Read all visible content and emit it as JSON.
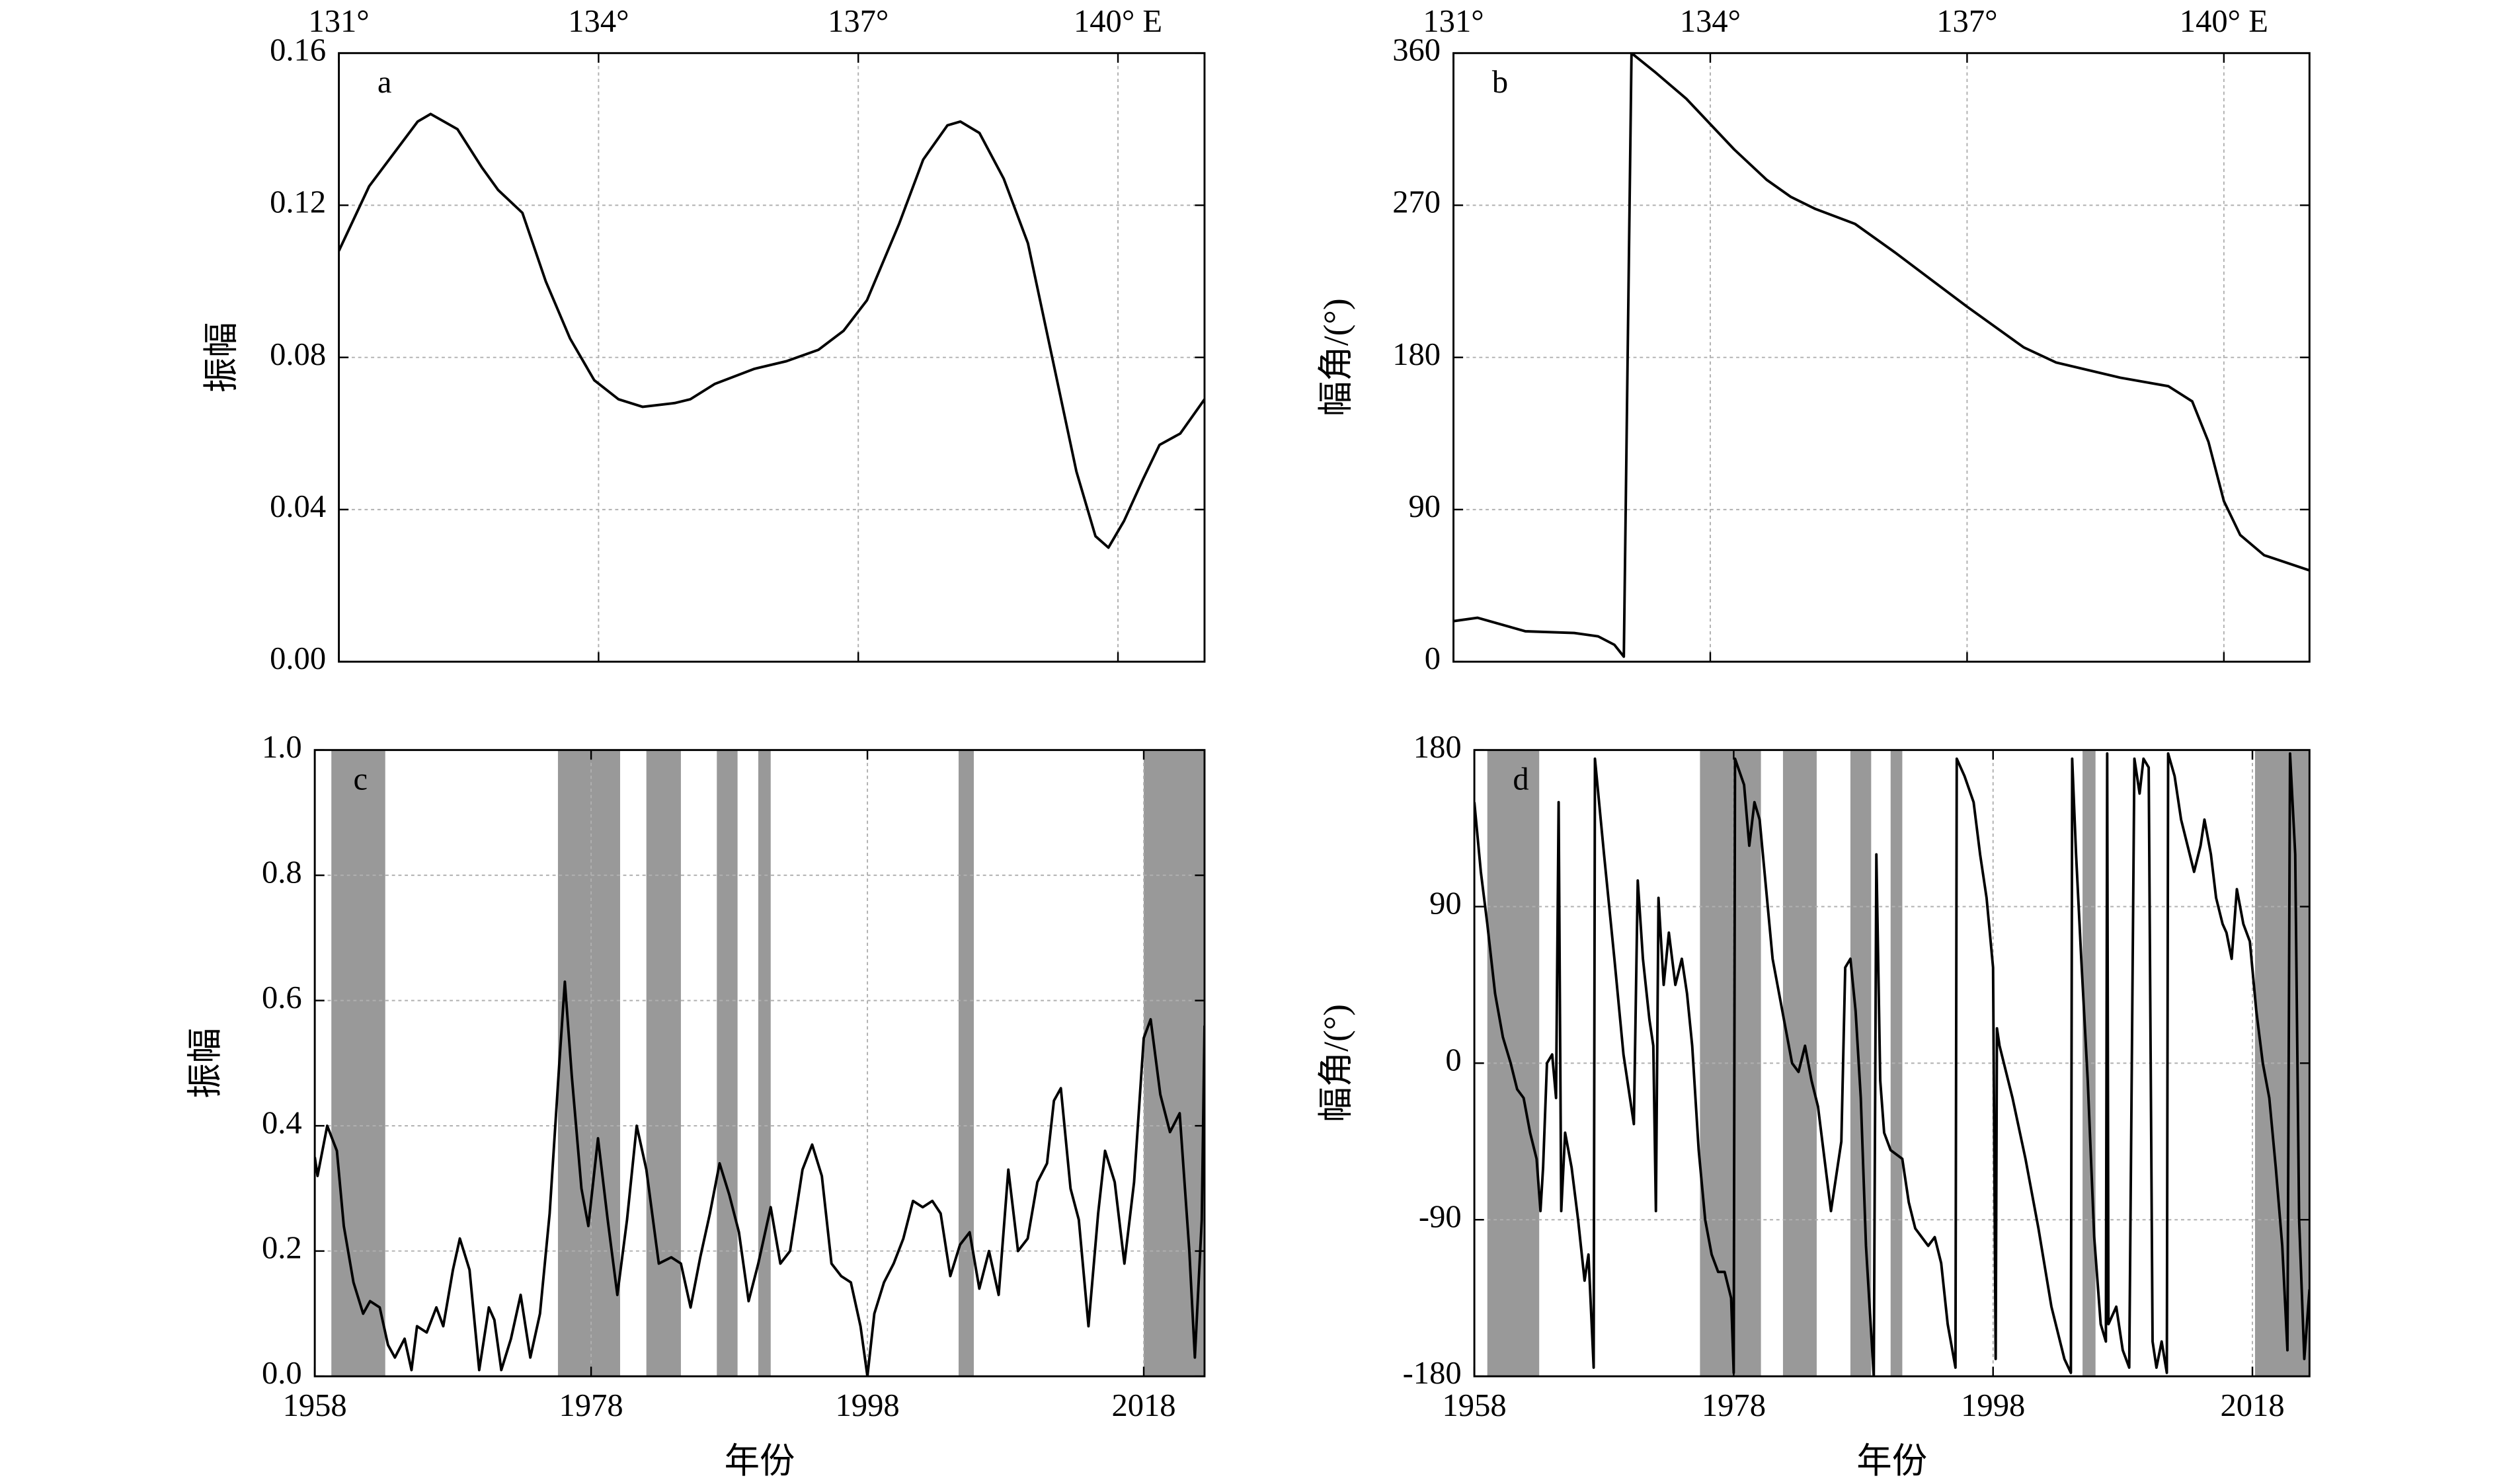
{
  "chart_data": [
    {
      "type": "line",
      "annotation": "a",
      "ylabel": "振幅",
      "xaxis_position": "top",
      "grid": true,
      "color": "#000000",
      "xlim": [
        131,
        141
      ],
      "xticks": [
        {
          "value": 131,
          "label": "131°"
        },
        {
          "value": 134,
          "label": "134°"
        },
        {
          "value": 137,
          "label": "137°"
        },
        {
          "value": 140,
          "label": "140° E"
        }
      ],
      "ylim": [
        0,
        0.16
      ],
      "yticks": [
        {
          "value": 0,
          "label": "0.00"
        },
        0.04,
        0.08,
        0.12,
        0.16
      ],
      "x": [
        131.0,
        131.35,
        131.91,
        132.06,
        132.37,
        132.65,
        132.84,
        133.12,
        133.39,
        133.67,
        133.95,
        134.23,
        134.51,
        134.88,
        135.06,
        135.34,
        135.8,
        136.17,
        136.54,
        136.83,
        137.1,
        137.47,
        137.75,
        138.03,
        138.18,
        138.4,
        138.68,
        138.96,
        139.24,
        139.52,
        139.74,
        139.89,
        140.07,
        140.29,
        140.48,
        140.72,
        141.0
      ],
      "values": [
        0.108,
        0.125,
        0.142,
        0.144,
        0.14,
        0.13,
        0.124,
        0.118,
        0.1,
        0.085,
        0.074,
        0.069,
        0.067,
        0.068,
        0.069,
        0.073,
        0.077,
        0.079,
        0.082,
        0.087,
        0.095,
        0.115,
        0.132,
        0.141,
        0.142,
        0.139,
        0.127,
        0.11,
        0.08,
        0.05,
        0.033,
        0.03,
        0.037,
        0.048,
        0.057,
        0.06,
        0.069
      ]
    },
    {
      "type": "line",
      "annotation": "b",
      "ylabel": "幅角/(°)",
      "xaxis_position": "top",
      "grid": true,
      "color": "#000000",
      "xlim": [
        131,
        141
      ],
      "xticks": [
        {
          "value": 131,
          "label": "131°"
        },
        {
          "value": 134,
          "label": "134°"
        },
        {
          "value": 137,
          "label": "137°"
        },
        {
          "value": 140,
          "label": "140° E"
        }
      ],
      "ylim": [
        0,
        360
      ],
      "yticks": [
        0,
        90,
        180,
        270,
        360
      ],
      "x": [
        131.0,
        131.28,
        131.56,
        131.84,
        132.41,
        132.69,
        132.88,
        132.99,
        133.08,
        133.35,
        133.72,
        134.28,
        134.66,
        134.94,
        135.22,
        135.69,
        136.16,
        137.0,
        137.66,
        138.04,
        138.79,
        139.35,
        139.63,
        139.82,
        140.0,
        140.19,
        140.47,
        141.0
      ],
      "values": [
        24,
        26,
        22,
        18,
        17,
        15,
        10,
        3,
        360,
        349,
        333,
        303,
        285,
        275,
        268,
        259,
        242,
        210,
        186,
        177,
        168,
        163,
        154,
        130,
        95,
        75,
        63,
        54
      ]
    },
    {
      "type": "line",
      "annotation": "c",
      "ylabel": "振幅",
      "xlabel": "年份",
      "xaxis_position": "bottom",
      "grid": true,
      "color": "#000000",
      "shade_color": "#999999",
      "xlim": [
        1958,
        2022.4
      ],
      "xticks": [
        1958,
        1978,
        1998,
        2018
      ],
      "ylim": [
        0,
        1
      ],
      "yticks": [
        {
          "value": 0,
          "label": "0.0"
        },
        0.2,
        0.4,
        0.6,
        0.8,
        {
          "value": 1,
          "label": "1.0"
        }
      ],
      "shaded_spans": [
        [
          1959.2,
          1963.1
        ],
        [
          1975.6,
          1980.1
        ],
        [
          1982.0,
          1984.5
        ],
        [
          1987.1,
          1988.6
        ],
        [
          1990.1,
          1991.0
        ],
        [
          2004.6,
          2005.7
        ],
        [
          2018.0,
          2022.4
        ]
      ],
      "x": [
        1958.0,
        1958.2,
        1958.9,
        1959.6,
        1960.1,
        1960.8,
        1961.5,
        1962.0,
        1962.7,
        1963.3,
        1963.8,
        1964.5,
        1965.0,
        1965.4,
        1966.1,
        1966.8,
        1967.3,
        1968.0,
        1968.5,
        1969.2,
        1969.9,
        1970.6,
        1971.0,
        1971.5,
        1972.2,
        1972.9,
        1973.6,
        1974.3,
        1975.0,
        1975.7,
        1976.1,
        1976.6,
        1977.3,
        1977.8,
        1978.5,
        1979.2,
        1979.9,
        1980.6,
        1981.3,
        1982.0,
        1982.9,
        1983.8,
        1984.5,
        1985.2,
        1985.9,
        1986.6,
        1987.3,
        1988.0,
        1988.7,
        1989.4,
        1990.1,
        1991.0,
        1991.7,
        1992.4,
        1993.3,
        1994.0,
        1994.7,
        1995.4,
        1996.1,
        1996.8,
        1997.5,
        1998.0,
        1998.5,
        1999.2,
        1999.9,
        2000.6,
        2001.3,
        2002.0,
        2002.7,
        2003.3,
        2004.0,
        2004.7,
        2005.4,
        2006.1,
        2006.8,
        2007.5,
        2008.2,
        2008.9,
        2009.6,
        2010.3,
        2011.0,
        2011.5,
        2012.0,
        2012.7,
        2013.3,
        2014.0,
        2014.7,
        2015.2,
        2015.9,
        2016.6,
        2017.3,
        2018.0,
        2018.5,
        2019.2,
        2019.9,
        2020.6,
        2021.3,
        2021.7,
        2022.2,
        2022.4
      ],
      "values": [
        0.35,
        0.32,
        0.4,
        0.36,
        0.24,
        0.15,
        0.1,
        0.12,
        0.11,
        0.05,
        0.03,
        0.06,
        0.01,
        0.08,
        0.07,
        0.11,
        0.08,
        0.17,
        0.22,
        0.17,
        0.01,
        0.11,
        0.09,
        0.01,
        0.06,
        0.13,
        0.03,
        0.1,
        0.26,
        0.5,
        0.63,
        0.48,
        0.3,
        0.24,
        0.38,
        0.25,
        0.13,
        0.25,
        0.4,
        0.33,
        0.18,
        0.19,
        0.18,
        0.11,
        0.19,
        0.26,
        0.34,
        0.29,
        0.23,
        0.12,
        0.18,
        0.27,
        0.18,
        0.2,
        0.33,
        0.37,
        0.32,
        0.18,
        0.16,
        0.15,
        0.08,
        0.0,
        0.1,
        0.15,
        0.18,
        0.22,
        0.28,
        0.27,
        0.28,
        0.26,
        0.16,
        0.21,
        0.23,
        0.14,
        0.2,
        0.13,
        0.33,
        0.2,
        0.22,
        0.31,
        0.34,
        0.44,
        0.46,
        0.3,
        0.25,
        0.08,
        0.26,
        0.36,
        0.31,
        0.18,
        0.31,
        0.54,
        0.57,
        0.45,
        0.39,
        0.42,
        0.2,
        0.03,
        0.25,
        0.56
      ]
    },
    {
      "type": "line",
      "annotation": "d",
      "ylabel": "幅角/(°)",
      "xlabel": "年份",
      "xaxis_position": "bottom",
      "grid": true,
      "color": "#000000",
      "shade_color": "#999999",
      "xlim": [
        1958,
        2022.4
      ],
      "xticks": [
        1958,
        1978,
        1998,
        2018
      ],
      "ylim": [
        -180,
        180
      ],
      "yticks": [
        -180,
        -90,
        0,
        90,
        180
      ],
      "shaded_spans": [
        [
          1959.0,
          1963.0
        ],
        [
          1975.4,
          1980.1
        ],
        [
          1981.8,
          1984.4
        ],
        [
          1987.0,
          1988.6
        ],
        [
          1990.1,
          1991.0
        ],
        [
          2004.9,
          2005.9
        ],
        [
          2018.2,
          2022.4
        ]
      ],
      "x": [
        1958.0,
        1958.5,
        1959.0,
        1959.6,
        1960.2,
        1960.8,
        1961.3,
        1961.8,
        1962.3,
        1962.8,
        1963.1,
        1963.3,
        1963.6,
        1964.0,
        1964.3,
        1964.5,
        1964.7,
        1965.0,
        1965.5,
        1966.0,
        1966.5,
        1966.8,
        1967.2,
        1967.3,
        1968.0,
        1968.8,
        1969.5,
        1970.0,
        1970.3,
        1970.6,
        1971.0,
        1971.5,
        1971.8,
        1972.0,
        1972.2,
        1972.6,
        1973.0,
        1973.5,
        1974.0,
        1974.4,
        1974.8,
        1975.3,
        1975.8,
        1976.3,
        1976.8,
        1977.3,
        1977.8,
        1978.0,
        1978.1,
        1978.8,
        1979.2,
        1979.6,
        1980.0,
        1980.5,
        1981.0,
        1981.5,
        1982.0,
        1982.5,
        1983.0,
        1983.5,
        1984.0,
        1984.5,
        1985.0,
        1985.5,
        1986.0,
        1986.3,
        1986.6,
        1987.0,
        1987.4,
        1987.8,
        1988.2,
        1988.8,
        1989.0,
        1989.3,
        1989.6,
        1990.1,
        1991.0,
        1991.5,
        1992.0,
        1992.5,
        1993.0,
        1993.5,
        1994.0,
        1994.5,
        1995.1,
        1995.2,
        1995.8,
        1996.5,
        1997.0,
        1997.5,
        1998.0,
        1998.2,
        1998.3,
        1998.5,
        1999.5,
        2000.5,
        2001.5,
        2002.5,
        2003.5,
        2004.0,
        2004.1,
        2004.4,
        2004.8,
        2005.3,
        2005.8,
        2006.3,
        2006.7,
        2006.8,
        2006.9,
        2007.5,
        2008.0,
        2008.5,
        2008.9,
        2009.3,
        2009.6,
        2010.0,
        2010.3,
        2010.6,
        2011.0,
        2011.4,
        2011.5,
        2012.0,
        2012.5,
        2013.0,
        2013.5,
        2014.0,
        2014.3,
        2014.8,
        2015.2,
        2015.7,
        2016.0,
        2016.4,
        2016.8,
        2017.3,
        2017.8,
        2018.3,
        2018.8,
        2019.3,
        2019.8,
        2020.3,
        2020.7,
        2020.9,
        2021.3,
        2021.6,
        2022.0,
        2022.4
      ],
      "values": [
        150,
        110,
        80,
        40,
        15,
        0,
        -15,
        -20,
        -40,
        -55,
        -85,
        -60,
        0,
        5,
        -20,
        150,
        -85,
        -40,
        -60,
        -90,
        -125,
        -110,
        -175,
        175,
        120,
        60,
        5,
        -20,
        -35,
        105,
        60,
        25,
        10,
        -85,
        95,
        45,
        75,
        45,
        60,
        40,
        10,
        -50,
        -90,
        -110,
        -120,
        -120,
        -135,
        -178,
        175,
        160,
        125,
        150,
        140,
        100,
        60,
        40,
        20,
        0,
        -5,
        10,
        -10,
        -25,
        -55,
        -85,
        -60,
        -45,
        55,
        60,
        30,
        -20,
        -105,
        -180,
        120,
        -10,
        -40,
        -50,
        -55,
        -80,
        -95,
        -100,
        -105,
        -100,
        -115,
        -150,
        -175,
        175,
        165,
        150,
        120,
        95,
        55,
        -170,
        20,
        10,
        -20,
        -55,
        -95,
        -140,
        -170,
        -178,
        175,
        120,
        60,
        -10,
        -100,
        -150,
        -160,
        178,
        -150,
        -140,
        -165,
        -175,
        175,
        155,
        175,
        170,
        -160,
        -175,
        -160,
        -178,
        178,
        165,
        140,
        125,
        110,
        125,
        140,
        120,
        95,
        80,
        75,
        60,
        100,
        80,
        70,
        30,
        0,
        -20,
        -60,
        -105,
        -165,
        178,
        120,
        -90,
        -170,
        -130
      ]
    }
  ]
}
